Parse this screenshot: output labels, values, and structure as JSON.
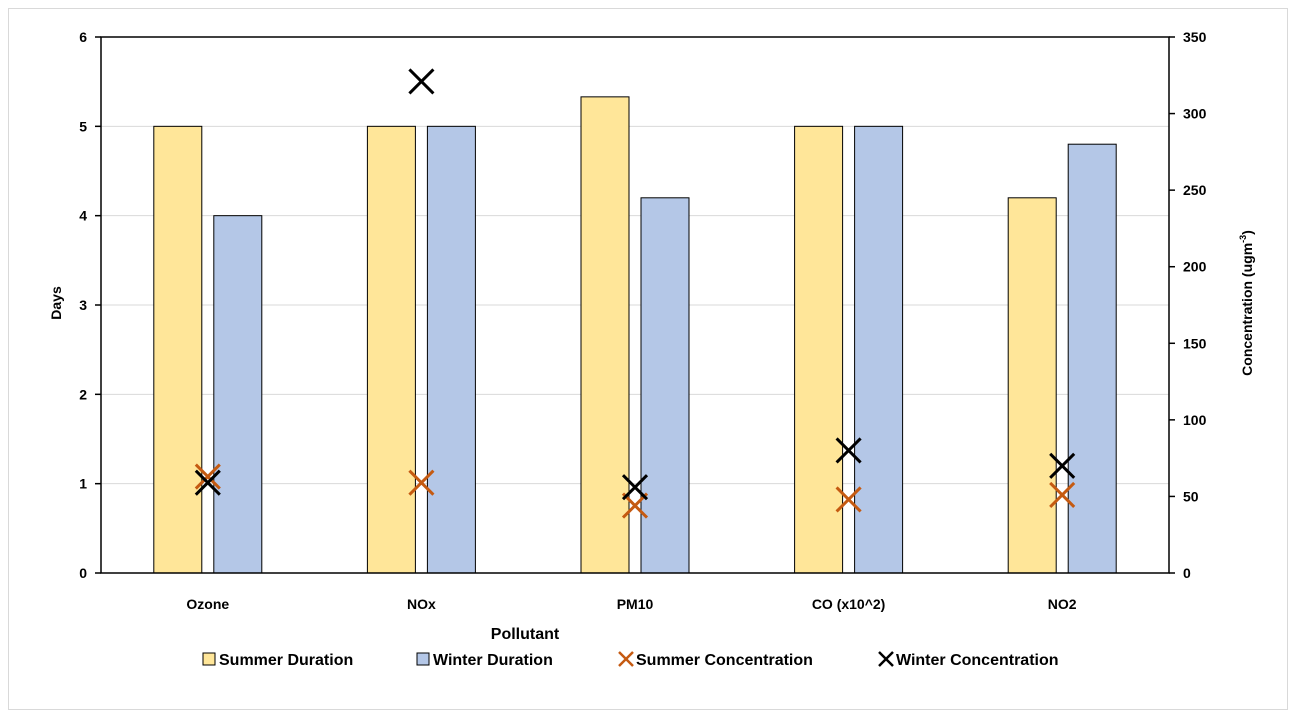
{
  "chart_data": {
    "type": "bar",
    "title": "",
    "xlabel": "Pollutant",
    "ylabel": "Days",
    "y2label": "Concentration (ugm",
    "y2label_sup": "-3",
    "y2label_end": ")",
    "categories": [
      "Ozone",
      "NOx",
      "PM10",
      "CO (x10^2)",
      "NO2"
    ],
    "ylim": [
      0,
      6
    ],
    "yticks": [
      "0",
      "1",
      "2",
      "3",
      "4",
      "5",
      "6"
    ],
    "y2lim": [
      0,
      350
    ],
    "y2ticks": [
      "0",
      "50",
      "100",
      "150",
      "200",
      "250",
      "300",
      "350"
    ],
    "grid": true,
    "legend_position": "bottom",
    "bar_series": [
      {
        "name": "Summer Duration",
        "axis": "left",
        "color": "#ffe699",
        "values": [
          5.0,
          5.0,
          5.33,
          5.0,
          4.2
        ]
      },
      {
        "name": "Winter Duration",
        "axis": "left",
        "color": "#b4c7e7",
        "values": [
          4.0,
          5.0,
          4.2,
          5.0,
          4.8
        ]
      }
    ],
    "marker_series": [
      {
        "name": "Summer Concentration",
        "axis": "right",
        "color": "#c55a11",
        "values": [
          63,
          59,
          44,
          48,
          51
        ]
      },
      {
        "name": "Winter Concentration",
        "axis": "right",
        "color": "#000000",
        "values": [
          59,
          321,
          56,
          80,
          70
        ]
      }
    ]
  }
}
